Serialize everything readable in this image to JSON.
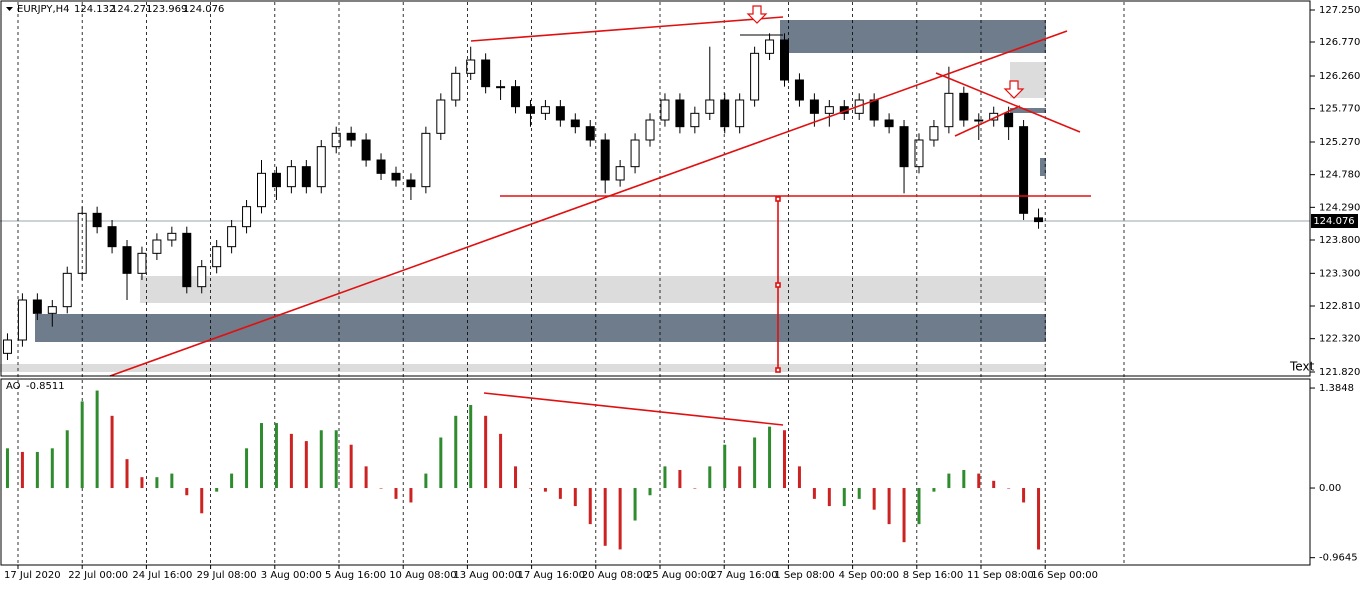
{
  "chart_data": [
    {
      "type": "candlestick",
      "title": "EURJPY,H4",
      "up_color": "#ffffff",
      "down_color": "#000000",
      "categories": [
        "17 Jul 2020",
        "22 Jul 00:00",
        "24 Jul 16:00",
        "29 Jul 08:00",
        "3 Aug 00:00",
        "5 Aug 16:00",
        "10 Aug 08:00",
        "13 Aug 00:00",
        "17 Aug 16:00",
        "20 Aug 08:00",
        "25 Aug 00:00",
        "27 Aug 16:00",
        "1 Sep 08:00",
        "4 Sep 00:00",
        "8 Sep 16:00",
        "11 Sep 08:00",
        "16 Sep 00:00"
      ],
      "open": [
        122.1,
        122.3,
        122.9,
        122.7,
        122.8,
        123.3,
        124.2,
        124.0,
        123.7,
        123.3,
        123.6,
        123.8,
        123.9,
        123.1,
        123.4,
        123.7,
        124.0,
        124.3,
        124.8,
        124.6,
        124.9,
        124.6,
        125.2,
        125.4,
        125.3,
        125.0,
        124.8,
        124.7,
        124.6,
        125.4,
        125.9,
        126.3,
        126.5,
        126.1,
        126.1,
        125.8,
        125.7,
        125.8,
        125.6,
        125.5,
        125.3,
        124.7,
        124.9,
        125.3,
        125.6,
        125.9,
        125.5,
        125.7,
        125.9,
        125.5,
        125.9,
        126.6,
        126.8,
        126.2,
        125.9,
        125.7,
        125.8,
        125.7,
        125.9,
        125.6,
        125.5,
        124.9,
        125.3,
        125.5,
        126.0,
        125.6,
        125.6,
        125.7,
        125.5,
        124.132
      ],
      "high": [
        122.4,
        123.0,
        123.0,
        122.9,
        123.4,
        124.3,
        124.3,
        124.1,
        123.8,
        123.7,
        123.9,
        124.0,
        124.0,
        123.5,
        123.8,
        124.1,
        124.4,
        125.0,
        124.9,
        125.0,
        125.0,
        125.3,
        125.5,
        125.5,
        125.4,
        125.1,
        124.9,
        124.8,
        125.5,
        126.0,
        126.4,
        126.7,
        126.6,
        126.2,
        126.2,
        125.9,
        125.9,
        125.9,
        125.7,
        125.6,
        125.4,
        125.0,
        125.4,
        125.7,
        126.0,
        126.0,
        125.8,
        126.7,
        126.0,
        126.0,
        126.7,
        126.9,
        126.9,
        126.3,
        126.0,
        125.9,
        125.9,
        126.0,
        126.0,
        125.7,
        125.6,
        125.4,
        125.6,
        126.4,
        126.1,
        125.7,
        125.8,
        125.8,
        125.6,
        124.271
      ],
      "low": [
        122.0,
        122.2,
        122.6,
        122.5,
        122.7,
        123.2,
        123.9,
        123.6,
        122.9,
        123.2,
        123.5,
        123.7,
        123.0,
        123.0,
        123.3,
        123.6,
        123.9,
        124.2,
        124.4,
        124.5,
        124.5,
        124.5,
        125.1,
        125.2,
        124.9,
        124.7,
        124.6,
        124.4,
        124.5,
        125.3,
        125.8,
        126.2,
        126.0,
        125.9,
        125.7,
        125.5,
        125.6,
        125.5,
        125.4,
        125.2,
        124.5,
        124.6,
        124.8,
        125.2,
        125.5,
        125.4,
        125.4,
        125.6,
        125.4,
        125.4,
        125.8,
        126.5,
        126.1,
        125.8,
        125.5,
        125.5,
        125.6,
        125.6,
        125.5,
        125.4,
        124.5,
        124.8,
        125.2,
        125.4,
        125.5,
        125.3,
        125.5,
        125.3,
        124.1,
        123.969
      ],
      "close": [
        122.3,
        122.9,
        122.7,
        122.8,
        123.3,
        124.2,
        124.0,
        123.7,
        123.3,
        123.6,
        123.8,
        123.9,
        123.1,
        123.4,
        123.7,
        124.0,
        124.3,
        124.8,
        124.6,
        124.9,
        124.6,
        125.2,
        125.4,
        125.3,
        125.0,
        124.8,
        124.7,
        124.6,
        125.4,
        125.9,
        126.3,
        126.5,
        126.1,
        126.1,
        125.8,
        125.7,
        125.8,
        125.6,
        125.5,
        125.3,
        124.7,
        124.9,
        125.3,
        125.6,
        125.9,
        125.5,
        125.7,
        125.9,
        125.5,
        125.9,
        126.6,
        126.8,
        126.2,
        125.9,
        125.7,
        125.8,
        125.7,
        125.9,
        125.6,
        125.5,
        124.9,
        125.3,
        125.5,
        126.0,
        125.6,
        125.6,
        125.7,
        125.5,
        124.2,
        124.076
      ],
      "ylim": [
        121.76,
        127.37
      ],
      "yticks": [
        {
          "value": 127.25,
          "label": "127.250"
        },
        {
          "value": 126.77,
          "label": "126.770"
        },
        {
          "value": 126.26,
          "label": "126.260"
        },
        {
          "value": 125.77,
          "label": "125.770"
        },
        {
          "value": 125.27,
          "label": "125.270"
        },
        {
          "value": 124.78,
          "label": "124.780"
        },
        {
          "value": 124.29,
          "label": "124.290"
        },
        {
          "value": 123.8,
          "label": "123.800"
        },
        {
          "value": 123.3,
          "label": "123.300"
        },
        {
          "value": 122.81,
          "label": "122.810"
        },
        {
          "value": 122.32,
          "label": "122.320"
        },
        {
          "value": 121.82,
          "label": "121.820"
        }
      ],
      "annotation": "Text"
    },
    {
      "type": "bar",
      "title": "AO",
      "up_color": "#2e8b2e",
      "down_color": "#cc2222",
      "values": [
        0.55,
        0.5,
        0.5,
        0.55,
        0.8,
        1.2,
        1.35,
        1.0,
        0.4,
        0.15,
        0.15,
        0.2,
        -0.1,
        -0.35,
        -0.05,
        0.2,
        0.55,
        0.9,
        0.9,
        0.75,
        0.65,
        0.8,
        0.8,
        0.6,
        0.3,
        0.0,
        -0.15,
        -0.2,
        0.2,
        0.7,
        1.0,
        1.15,
        1.0,
        0.75,
        0.3,
        0.0,
        -0.05,
        -0.15,
        -0.25,
        -0.5,
        -0.8,
        -0.85,
        -0.45,
        -0.1,
        0.3,
        0.25,
        0.0,
        0.3,
        0.6,
        0.3,
        0.7,
        0.85,
        0.8,
        0.3,
        -0.15,
        -0.25,
        -0.25,
        -0.15,
        -0.3,
        -0.5,
        -0.75,
        -0.5,
        -0.05,
        0.2,
        0.25,
        0.2,
        0.1,
        0.0,
        -0.2,
        -0.8511
      ],
      "ylim": [
        -1.066,
        1.51
      ],
      "yticks": [
        1.3848,
        {
          "value": 0,
          "label": "0.00"
        },
        -0.9645
      ]
    }
  ]
}
